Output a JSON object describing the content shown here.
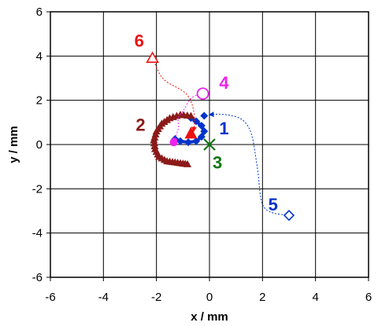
{
  "chart_data": {
    "type": "scatter",
    "title": "",
    "xlabel": "x / mm",
    "ylabel": "y / mm",
    "xlim": [
      -6,
      6
    ],
    "ylim": [
      -6,
      6
    ],
    "xticks": [
      -6,
      -4,
      -2,
      0,
      2,
      4,
      6
    ],
    "yticks": [
      -6,
      -4,
      -2,
      0,
      2,
      4,
      6
    ],
    "tick_labels_x": [
      "-6",
      "-4",
      "-2",
      "0",
      "2",
      "4",
      "6"
    ],
    "tick_labels_y": [
      "-6",
      "-4",
      "-2",
      "0",
      "2",
      "4",
      "6"
    ],
    "grid": true,
    "legend": "none",
    "series": [
      {
        "label": "1",
        "color": "#0033cc",
        "marker": "diamond-filled",
        "style": "thick-line",
        "points": [
          [
            -1.3,
            0.25
          ],
          [
            -1.1,
            0.15
          ],
          [
            -0.8,
            0.1
          ],
          [
            -0.5,
            0.15
          ],
          [
            -0.3,
            0.35
          ],
          [
            -0.2,
            0.6
          ],
          [
            -0.3,
            0.85
          ],
          [
            -0.5,
            1.05
          ],
          [
            -0.7,
            1.2
          ]
        ],
        "end_marker": [
          -0.2,
          1.3
        ],
        "label_position": [
          0.55,
          0.75
        ]
      },
      {
        "label": "2",
        "color": "#8b1a1a",
        "marker": "triangle-filled",
        "style": "triangle-chain",
        "points": [
          [
            -0.7,
            1.3
          ],
          [
            -1.1,
            1.35
          ],
          [
            -1.5,
            1.2
          ],
          [
            -1.8,
            0.95
          ],
          [
            -2.0,
            0.6
          ],
          [
            -2.1,
            0.2
          ],
          [
            -2.05,
            -0.2
          ],
          [
            -1.9,
            -0.55
          ],
          [
            -1.6,
            -0.75
          ],
          [
            -1.3,
            -0.8
          ],
          [
            -1.0,
            -0.85
          ],
          [
            -0.75,
            -0.9
          ]
        ],
        "end_marker": [
          -0.7,
          0.45
        ],
        "end_color": "#ee1111",
        "label_position": [
          -2.6,
          0.9
        ]
      },
      {
        "label": "3",
        "color": "#117711",
        "marker": "x",
        "points": [
          [
            0,
            0
          ]
        ],
        "label_position": [
          0.3,
          -0.8
        ]
      },
      {
        "label": "4",
        "color": "#ee22ee",
        "marker": "circle-open",
        "style": "dotted-arrow",
        "points": [
          [
            -0.25,
            2.3
          ],
          [
            -0.6,
            2.2
          ],
          [
            -0.8,
            1.95
          ],
          [
            -0.9,
            1.7
          ],
          [
            -1.0,
            1.5
          ],
          [
            -1.15,
            1.3
          ],
          [
            -1.2,
            1.05
          ],
          [
            -1.15,
            0.85
          ],
          [
            -1.2,
            0.6
          ],
          [
            -1.35,
            0.1
          ]
        ],
        "end_marker": [
          -1.35,
          0.1
        ],
        "label_position": [
          0.55,
          2.8
        ]
      },
      {
        "label": "5",
        "color": "#0033cc",
        "marker": "diamond-open",
        "style": "dotted-arrow",
        "points": [
          [
            3.0,
            -3.2
          ],
          [
            2.3,
            -3.1
          ],
          [
            2.0,
            -2.8
          ],
          [
            1.9,
            -2.2
          ],
          [
            1.85,
            -1.4
          ],
          [
            1.75,
            -0.6
          ],
          [
            1.65,
            0.2
          ],
          [
            1.5,
            0.8
          ],
          [
            1.2,
            1.2
          ],
          [
            0.7,
            1.35
          ],
          [
            0.3,
            1.38
          ],
          [
            0.0,
            1.35
          ]
        ],
        "start_marker": [
          3.0,
          -3.2
        ],
        "label_position": [
          2.4,
          -2.7
        ]
      },
      {
        "label": "6",
        "color": "#ee1111",
        "marker": "triangle-open",
        "style": "dotted-arrow",
        "points": [
          [
            -2.15,
            3.9
          ],
          [
            -2.0,
            3.5
          ],
          [
            -1.85,
            3.1
          ],
          [
            -1.6,
            2.8
          ],
          [
            -1.25,
            2.6
          ],
          [
            -0.9,
            2.35
          ],
          [
            -0.7,
            2.0
          ],
          [
            -0.6,
            1.6
          ],
          [
            -0.55,
            1.1
          ],
          [
            -0.6,
            0.6
          ]
        ],
        "start_marker": [
          -2.15,
          3.9
        ],
        "label_position": [
          -2.65,
          4.7
        ]
      }
    ]
  }
}
